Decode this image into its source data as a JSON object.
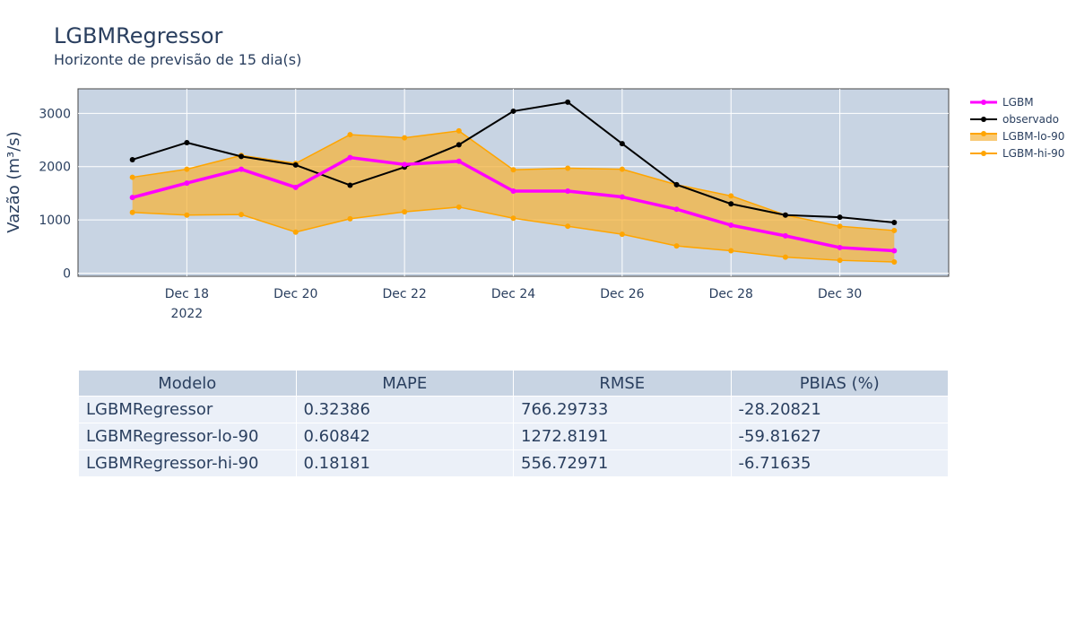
{
  "title": "LGBMRegressor",
  "subtitle": "Horizonte de previsão de 15 dia(s)",
  "colors": {
    "plot_bg": "#c8d4e3",
    "grid": "#ffffff",
    "lgbm": "#ff00ff",
    "observed": "#000000",
    "band_line": "#ffa500",
    "band_fill": "#f5b43c"
  },
  "chart_data": {
    "type": "line",
    "ylabel": "Vazão (m³/s)",
    "xlabel": "",
    "x": [
      "2022-12-17",
      "2022-12-18",
      "2022-12-19",
      "2022-12-20",
      "2022-12-21",
      "2022-12-22",
      "2022-12-23",
      "2022-12-24",
      "2022-12-25",
      "2022-12-26",
      "2022-12-27",
      "2022-12-28",
      "2022-12-29",
      "2022-12-30",
      "2022-12-31"
    ],
    "xlim": [
      "2022-12-16",
      "2023-01-01"
    ],
    "ylim": [
      -60,
      3460
    ],
    "yticks": [
      0,
      1000,
      2000,
      3000
    ],
    "ytick_labels": [
      "0",
      "1000",
      "2000",
      "3000"
    ],
    "xticks": [
      "2022-12-18",
      "2022-12-20",
      "2022-12-22",
      "2022-12-24",
      "2022-12-26",
      "2022-12-28",
      "2022-12-30"
    ],
    "xtick_labels": [
      "Dec 18",
      "Dec 20",
      "Dec 22",
      "Dec 24",
      "Dec 26",
      "Dec 28",
      "Dec 30"
    ],
    "xtick_sublabel": "2022",
    "grid": true,
    "legend_position": "right",
    "series": [
      {
        "name": "LGBM",
        "values": [
          1420,
          1690,
          1950,
          1610,
          2170,
          2040,
          2100,
          1540,
          1540,
          1430,
          1200,
          900,
          700,
          480,
          420
        ]
      },
      {
        "name": "observado",
        "values": [
          2130,
          2450,
          2190,
          2030,
          1650,
          1990,
          2410,
          3040,
          3210,
          2430,
          1660,
          1300,
          1090,
          1050,
          950
        ]
      },
      {
        "name": "LGBM-lo-90",
        "values": [
          1140,
          1090,
          1100,
          770,
          1020,
          1150,
          1240,
          1030,
          880,
          730,
          510,
          420,
          300,
          240,
          210
        ]
      },
      {
        "name": "LGBM-hi-90",
        "values": [
          1800,
          1950,
          2210,
          2060,
          2600,
          2540,
          2670,
          1940,
          1970,
          1950,
          1660,
          1450,
          1090,
          880,
          800
        ]
      }
    ]
  },
  "table": {
    "headers": [
      "Modelo",
      "MAPE",
      "RMSE",
      "PBIAS (%)"
    ],
    "rows": [
      [
        "LGBMRegressor",
        "0.32386",
        "766.29733",
        "-28.20821"
      ],
      [
        "LGBMRegressor-lo-90",
        "0.60842",
        "1272.8191",
        "-59.81627"
      ],
      [
        "LGBMRegressor-hi-90",
        "0.18181",
        "556.72971",
        "-6.71635"
      ]
    ]
  }
}
